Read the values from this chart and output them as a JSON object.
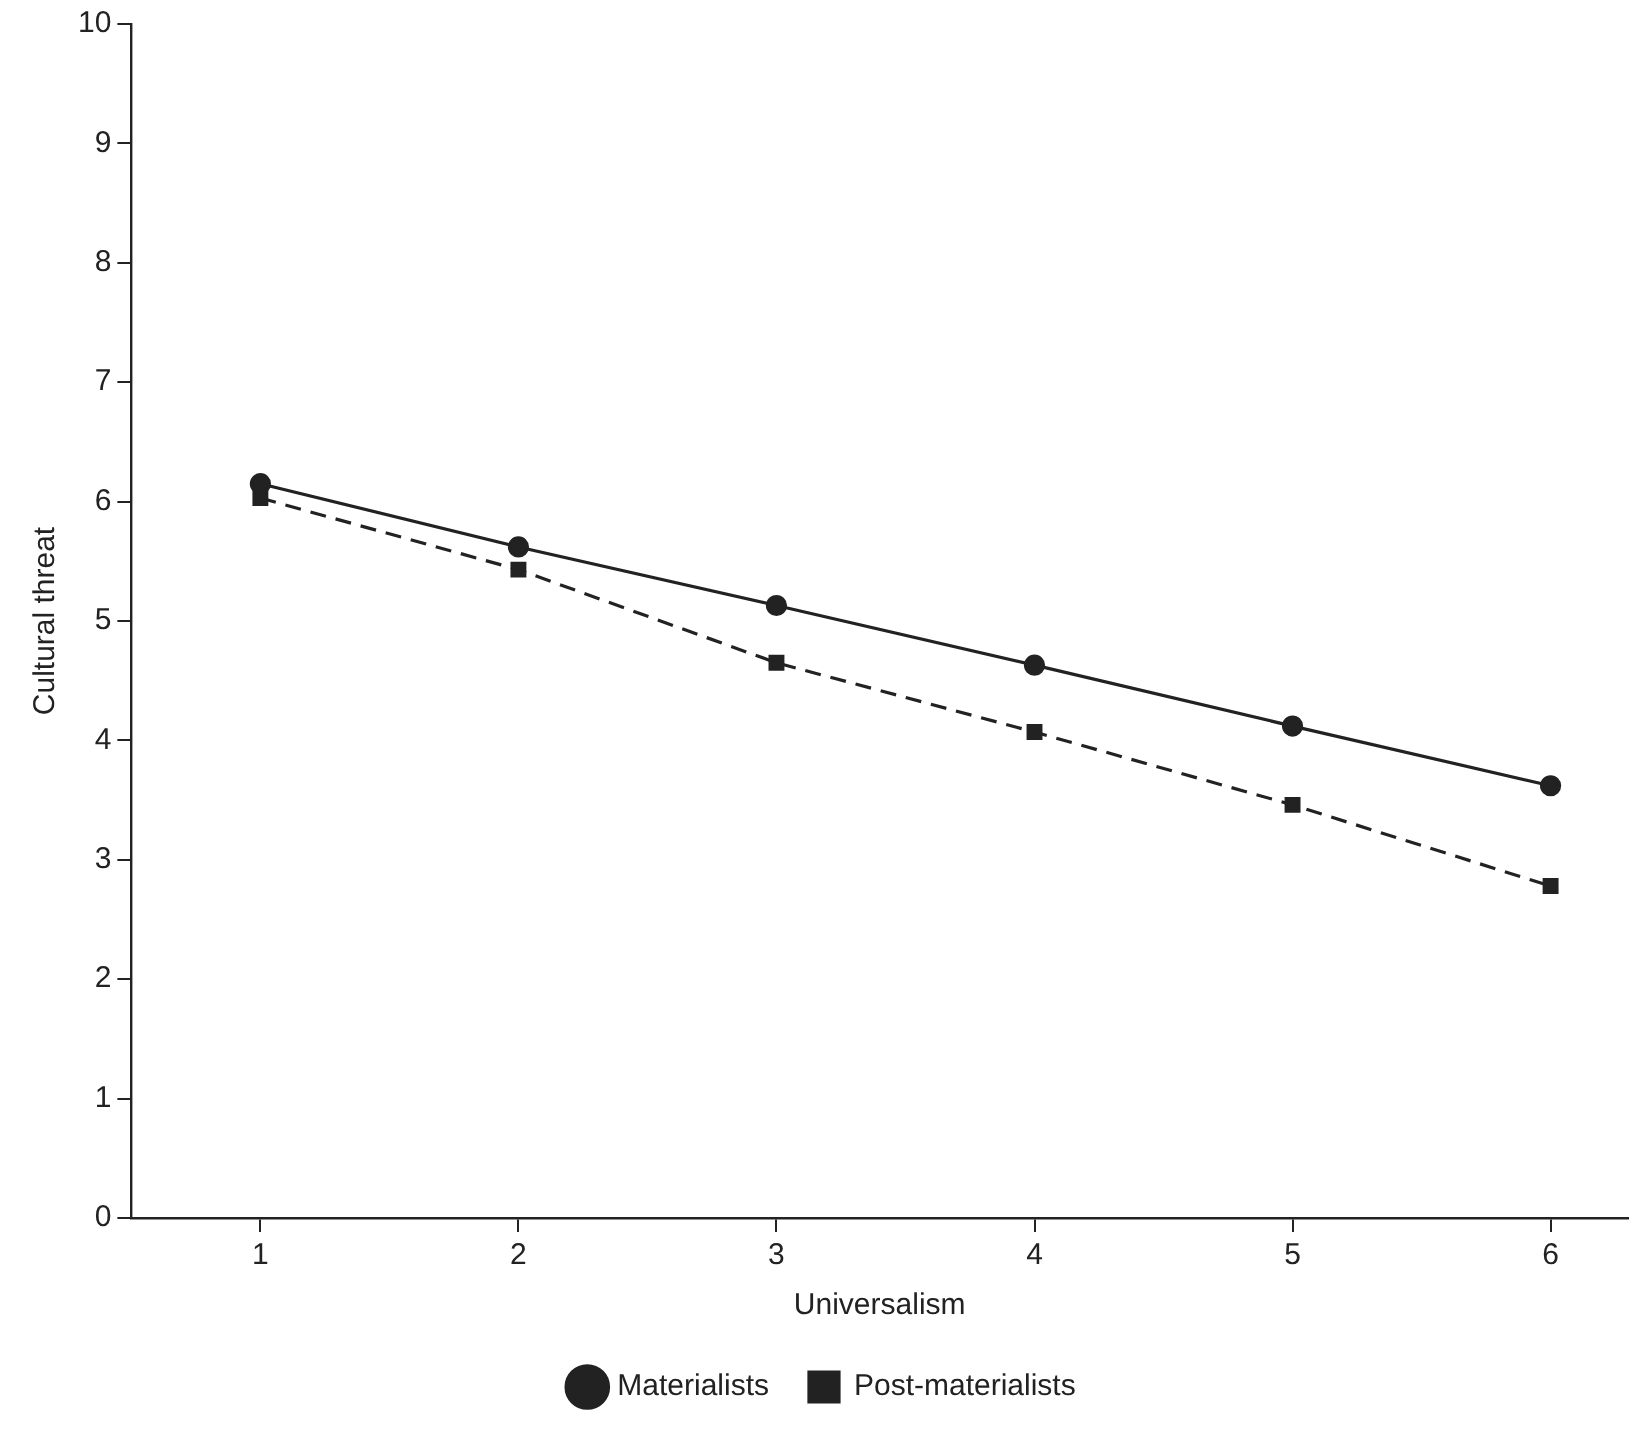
{
  "chart_data": {
    "type": "line",
    "xlabel": "Universalism",
    "ylabel": "Cultural threat",
    "x": [
      1,
      2,
      3,
      4,
      5,
      6
    ],
    "series": [
      {
        "name": "Materialists",
        "color": "#222222",
        "values": [
          6.15,
          5.62,
          5.13,
          4.63,
          4.12,
          3.62
        ],
        "marker": "circle",
        "line_style": "solid"
      },
      {
        "name": "Post-materialists",
        "color": "#222222",
        "values": [
          6.03,
          5.43,
          4.65,
          4.07,
          3.46,
          2.78
        ],
        "marker": "square",
        "line_style": "dashed"
      }
    ],
    "xlim": [
      0.5,
      6.3
    ],
    "xticks": [
      1,
      2,
      3,
      4,
      5,
      6
    ],
    "ylim": [
      0,
      10
    ],
    "yticks": [
      0,
      1,
      2,
      3,
      4,
      5,
      6,
      7,
      8,
      9,
      10
    ],
    "grid": false,
    "legend": "bottom"
  }
}
